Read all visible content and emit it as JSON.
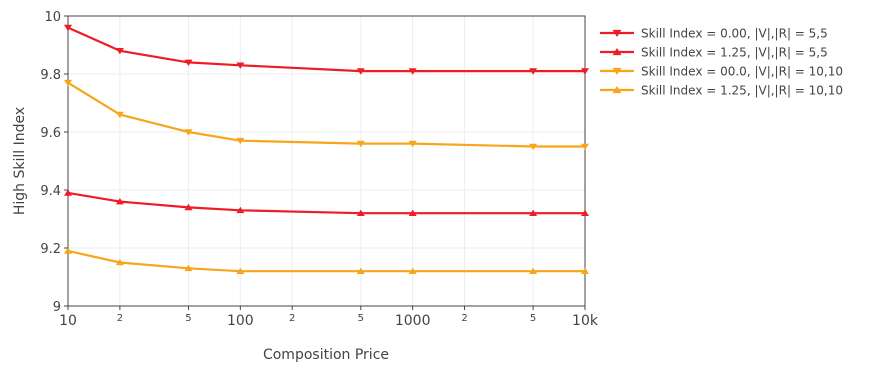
{
  "chart_data": {
    "type": "line",
    "title": "",
    "xlabel": "Composition Price",
    "ylabel": "High Skill Index",
    "x_scale": "log",
    "xlim": [
      10,
      10000
    ],
    "ylim": [
      9,
      10
    ],
    "grid": true,
    "legend_position": "right",
    "x_tick_values": [
      10,
      20,
      50,
      100,
      200,
      500,
      1000,
      2000,
      5000,
      10000
    ],
    "x_tick_labels": [
      "10",
      "2",
      "5",
      "100",
      "2",
      "5",
      "1000",
      "2",
      "5",
      "10k"
    ],
    "y_tick_values": [
      9,
      9.2,
      9.4,
      9.6,
      9.8,
      10
    ],
    "y_tick_labels": [
      "9",
      "9.2",
      "9.4",
      "9.6",
      "9.8",
      "10"
    ],
    "x": [
      10,
      20,
      50,
      100,
      500,
      1000,
      5000,
      10000
    ],
    "series": [
      {
        "name": "Skill Index = 0.00, |V|,|R| = 5,5",
        "color": "#ee1c25",
        "marker": "triangle-down",
        "values": [
          9.96,
          9.88,
          9.84,
          9.83,
          9.81,
          9.81,
          9.81,
          9.81
        ]
      },
      {
        "name": "Skill Index = 1.25, |V|,|R| = 5,5",
        "color": "#ee1c25",
        "marker": "triangle-up",
        "values": [
          9.39,
          9.36,
          9.34,
          9.33,
          9.32,
          9.32,
          9.32,
          9.32
        ]
      },
      {
        "name": "Skill Index = 00.0, |V|,|R| = 10,10",
        "color": "#f9a51b",
        "marker": "triangle-down",
        "values": [
          9.77,
          9.66,
          9.6,
          9.57,
          9.56,
          9.56,
          9.55,
          9.55
        ]
      },
      {
        "name": "Skill Index = 1.25, |V|,|R| = 10,10",
        "color": "#f9a51b",
        "marker": "triangle-up",
        "values": [
          9.19,
          9.15,
          9.13,
          9.12,
          9.12,
          9.12,
          9.12,
          9.12
        ]
      }
    ]
  }
}
